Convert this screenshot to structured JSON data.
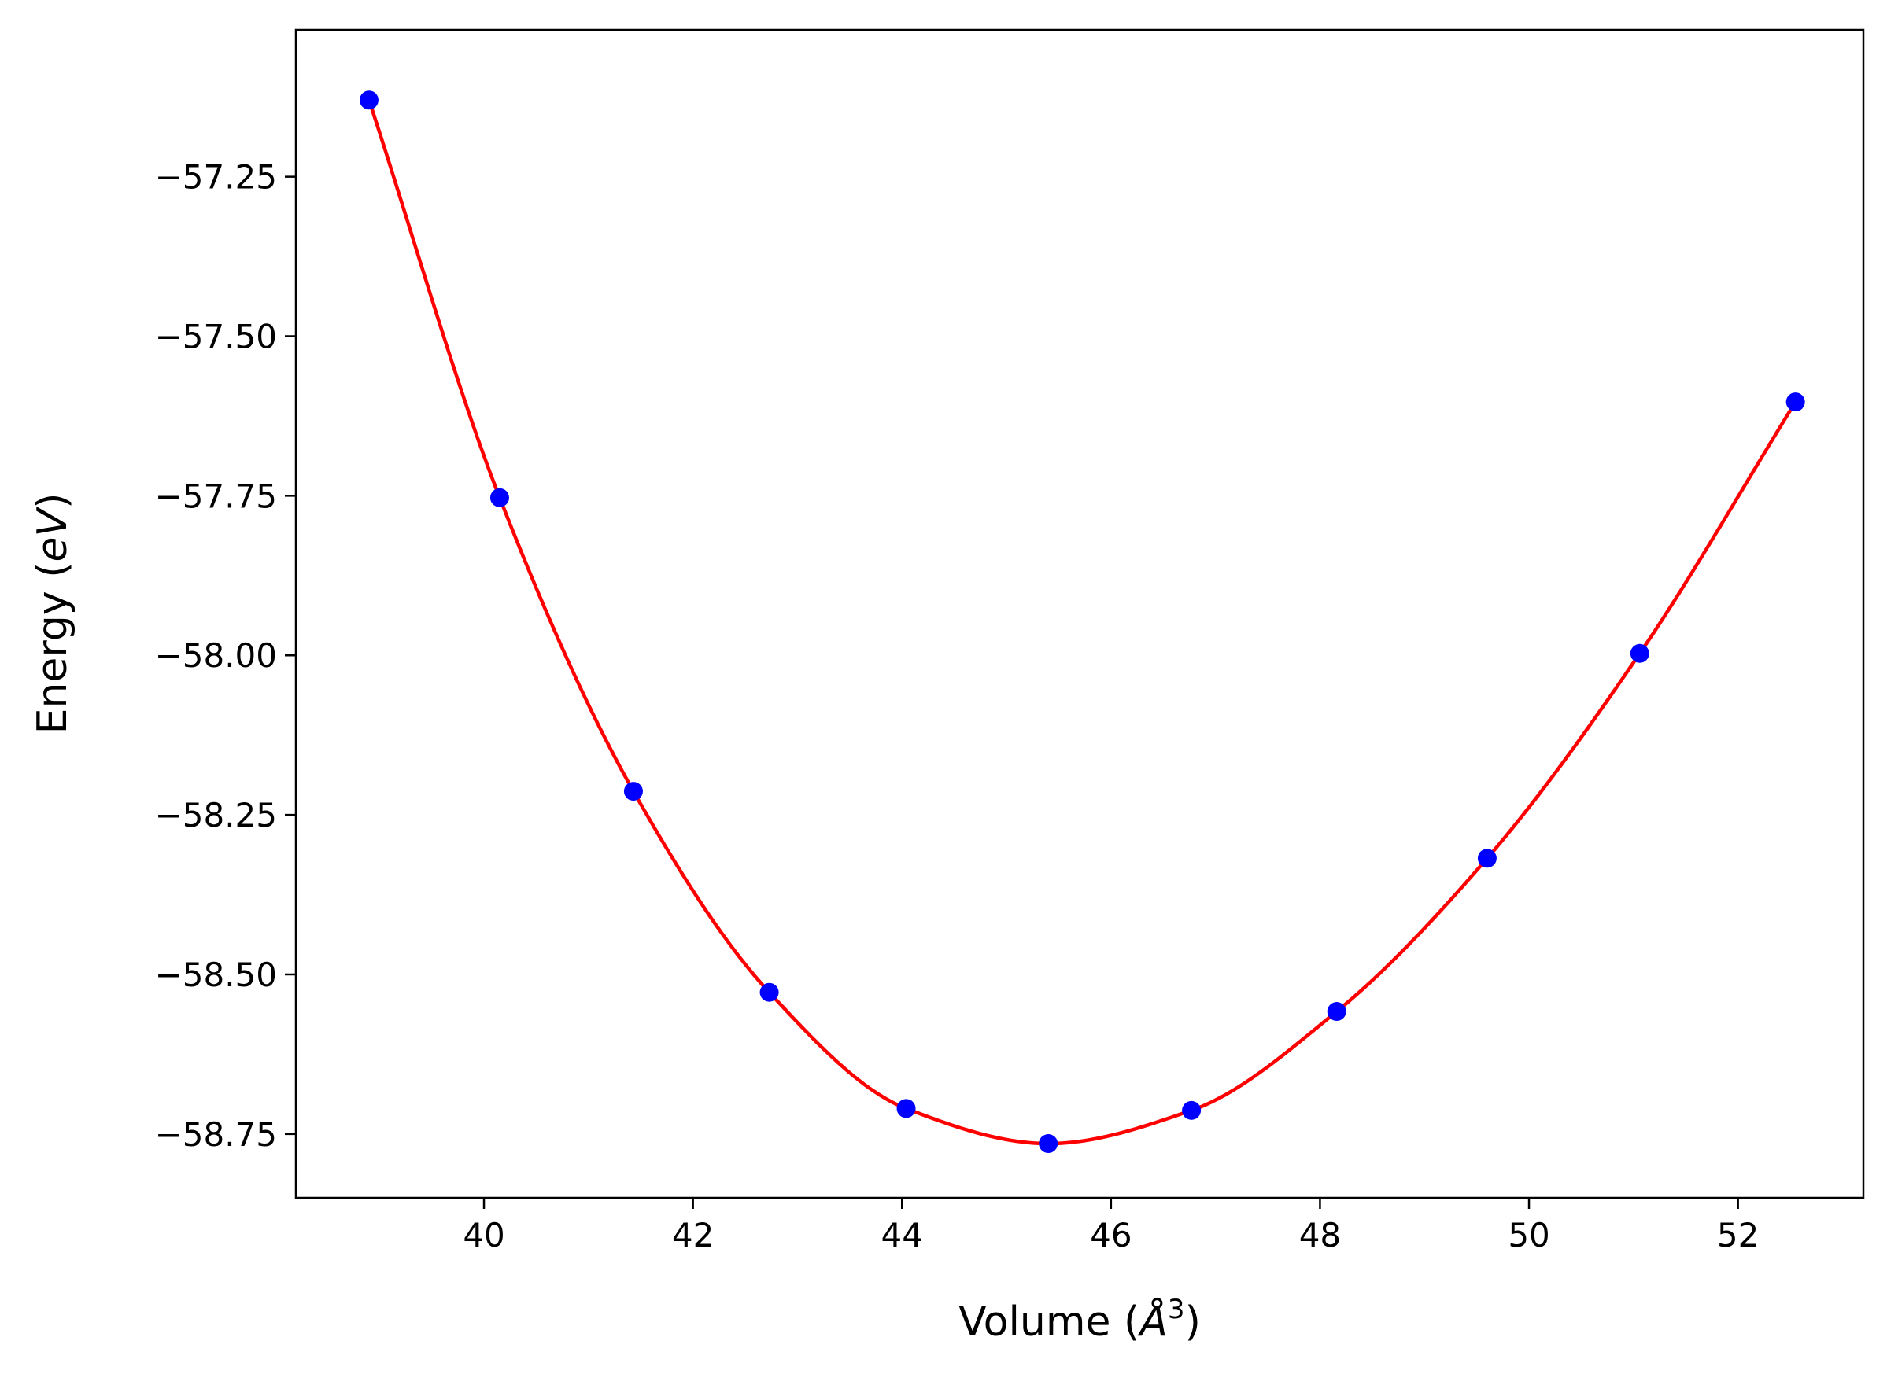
{
  "chart_data": {
    "type": "scatter",
    "title": "",
    "xlabel": "Volume (Å³)",
    "xlabel_parts": {
      "prefix": "Volume (",
      "unit": "Å",
      "sup": "3",
      "suffix": ")"
    },
    "ylabel": "Energy (eV)",
    "ylabel_parts": {
      "prefix": "Energy (",
      "unit": "eV",
      "suffix": ")"
    },
    "xlim": [
      38.2,
      53.2
    ],
    "ylim": [
      -58.85,
      -57.02
    ],
    "xticks": [
      40,
      42,
      44,
      46,
      48,
      50,
      52
    ],
    "xtick_labels": [
      "40",
      "42",
      "44",
      "46",
      "48",
      "50",
      "52"
    ],
    "yticks": [
      -57.25,
      -57.5,
      -57.75,
      -58.0,
      -58.25,
      -58.5,
      -58.75
    ],
    "ytick_labels": [
      "−57.25",
      "−57.50",
      "−57.75",
      "−58.00",
      "−58.25",
      "−58.50",
      "−58.75"
    ],
    "grid": false,
    "legend": "none",
    "series": [
      {
        "kind": "points",
        "color": "#0000ff",
        "x": [
          38.9,
          40.15,
          41.43,
          42.73,
          44.04,
          45.4,
          46.77,
          48.16,
          49.6,
          51.06,
          52.55
        ],
        "y": [
          -57.13,
          -57.753,
          -58.213,
          -58.528,
          -58.71,
          -58.765,
          -58.713,
          -58.558,
          -58.318,
          -57.997,
          -57.603
        ]
      },
      {
        "kind": "fit-curve",
        "color": "#ff0000",
        "x": [
          38.9,
          40.15,
          41.43,
          42.73,
          44.04,
          45.4,
          46.77,
          48.16,
          49.6,
          51.06,
          52.55
        ],
        "y": [
          -57.13,
          -57.753,
          -58.213,
          -58.528,
          -58.71,
          -58.765,
          -58.713,
          -58.558,
          -58.318,
          -57.997,
          -57.603
        ]
      }
    ]
  }
}
